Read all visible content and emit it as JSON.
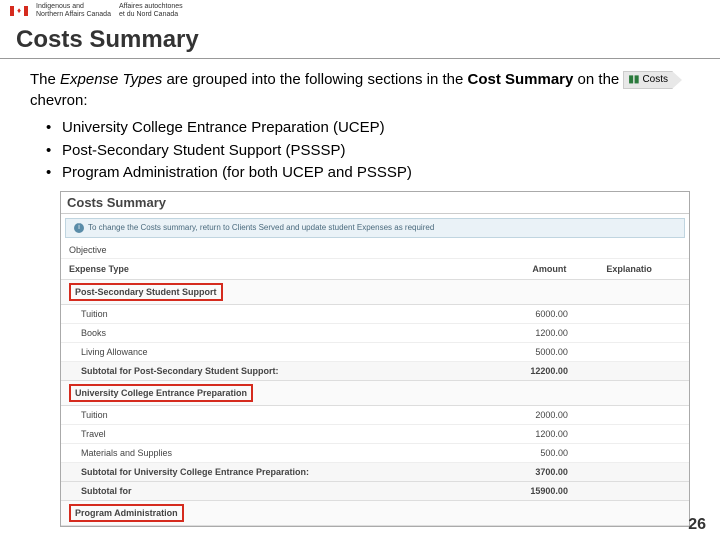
{
  "header": {
    "en_line1": "Indigenous and",
    "en_line2": "Northern Affairs Canada",
    "fr_line1": "Affaires autochtones",
    "fr_line2": "et du Nord Canada"
  },
  "title": "Costs Summary",
  "intro": {
    "part1": "The ",
    "italic": "Expense Types ",
    "part2": "are grouped into the following sections in the ",
    "bold": "Cost Summary ",
    "part3": "on the ",
    "chevron_label": "Costs",
    "part4": " chevron:"
  },
  "bullets": [
    "University College Entrance Preparation (UCEP)",
    "Post-Secondary Student Support (PSSSP)",
    "Program Administration (for both UCEP and PSSSP)"
  ],
  "screenshot": {
    "title": "Costs Summary",
    "info": "To change the Costs summary, return to Clients Served and update student Expenses as required",
    "objective": "Objective",
    "headers": {
      "type": "Expense Type",
      "amount": "Amount",
      "explanation": "Explanatio"
    },
    "section1": {
      "name": "Post-Secondary Student Support",
      "rows": [
        {
          "label": "Tuition",
          "amount": "6000.00"
        },
        {
          "label": "Books",
          "amount": "1200.00"
        },
        {
          "label": "Living Allowance",
          "amount": "5000.00"
        }
      ],
      "subtotal_label": "Subtotal for Post-Secondary Student Support:",
      "subtotal": "12200.00"
    },
    "section2": {
      "name": "University College Entrance Preparation",
      "rows": [
        {
          "label": "Tuition",
          "amount": "2000.00"
        },
        {
          "label": "Travel",
          "amount": "1200.00"
        },
        {
          "label": "Materials and Supplies",
          "amount": "500.00"
        }
      ],
      "subtotal_label": "Subtotal for University College Entrance Preparation:",
      "subtotal": "3700.00",
      "subtotal_for_label": "Subtotal for",
      "subtotal_for": "15900.00"
    },
    "section3": {
      "name": "Program Administration"
    }
  },
  "page_number": "26"
}
